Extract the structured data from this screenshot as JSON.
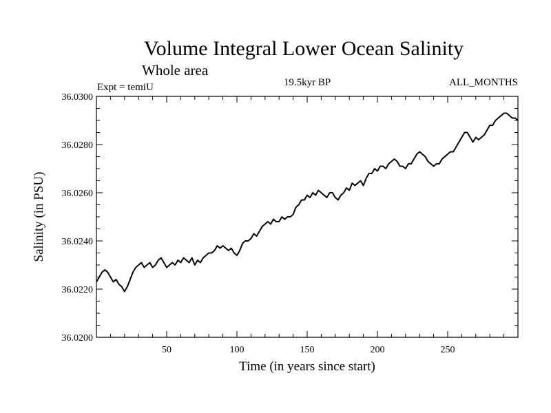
{
  "chart_data": {
    "type": "line",
    "title": "Volume Integral Lower Ocean Salinity",
    "subtitle": "Whole area",
    "left_note": "Expt = temiU",
    "center_note": "19.5kyr BP",
    "right_note": "ALL_MONTHS",
    "xlabel": "Time (in years since start)",
    "ylabel": "Salinity (in PSU)",
    "xlim": [
      0,
      300
    ],
    "ylim": [
      36.02,
      36.03
    ],
    "x_ticks": [
      50,
      100,
      150,
      200,
      250
    ],
    "x_tick_labels": [
      "50",
      "100",
      "150",
      "200",
      "250"
    ],
    "y_ticks": [
      36.02,
      36.022,
      36.024,
      36.026,
      36.028,
      36.03
    ],
    "y_tick_labels": [
      "36.0200",
      "36.0220",
      "36.0240",
      "36.0260",
      "36.0280",
      "36.0300"
    ],
    "grid": false,
    "series": [
      {
        "name": "Salinity",
        "color": "#000000",
        "x": [
          0,
          2,
          4,
          6,
          8,
          10,
          12,
          14,
          16,
          18,
          20,
          22,
          24,
          26,
          28,
          30,
          32,
          34,
          36,
          38,
          40,
          42,
          44,
          46,
          48,
          50,
          52,
          54,
          56,
          58,
          60,
          62,
          64,
          66,
          68,
          70,
          72,
          74,
          76,
          78,
          80,
          82,
          84,
          86,
          88,
          90,
          92,
          94,
          96,
          98,
          100,
          102,
          104,
          106,
          108,
          110,
          112,
          114,
          116,
          118,
          120,
          122,
          124,
          126,
          128,
          130,
          132,
          134,
          136,
          138,
          140,
          142,
          144,
          146,
          148,
          150,
          152,
          154,
          156,
          158,
          160,
          162,
          164,
          166,
          168,
          170,
          172,
          174,
          176,
          178,
          180,
          182,
          184,
          186,
          188,
          190,
          192,
          194,
          196,
          198,
          200,
          202,
          204,
          206,
          208,
          210,
          212,
          214,
          216,
          218,
          220,
          222,
          224,
          226,
          228,
          230,
          232,
          234,
          236,
          238,
          240,
          242,
          244,
          246,
          248,
          250,
          252,
          254,
          256,
          258,
          260,
          262,
          264,
          266,
          268,
          270,
          272,
          274,
          276,
          278,
          280,
          282,
          284,
          286,
          288,
          290,
          292,
          294,
          296,
          298,
          300
        ],
        "y": [
          36.0223,
          36.0225,
          36.0227,
          36.0228,
          36.0227,
          36.0225,
          36.0223,
          36.0224,
          36.0222,
          36.0221,
          36.0219,
          36.0221,
          36.0224,
          36.0227,
          36.0229,
          36.023,
          36.0231,
          36.0229,
          36.023,
          36.0231,
          36.0229,
          36.023,
          36.0232,
          36.0233,
          36.0231,
          36.0229,
          36.023,
          36.0231,
          36.023,
          36.0232,
          36.0231,
          36.0233,
          36.0232,
          36.0231,
          36.0233,
          36.023,
          36.0232,
          36.0231,
          36.0233,
          36.0234,
          36.0235,
          36.0235,
          36.0236,
          36.0238,
          36.0237,
          36.0238,
          36.0237,
          36.0236,
          36.0237,
          36.0235,
          36.0234,
          36.0236,
          36.0239,
          36.024,
          36.024,
          36.0241,
          36.0243,
          36.0242,
          36.0244,
          36.0246,
          36.0247,
          36.0248,
          36.0247,
          36.0249,
          36.0248,
          36.0248,
          36.025,
          36.0249,
          36.025,
          36.025,
          36.0251,
          36.0254,
          36.0255,
          36.0257,
          36.0257,
          36.0259,
          36.0258,
          36.026,
          36.0259,
          36.0261,
          36.026,
          36.0259,
          36.0258,
          36.026,
          36.026,
          36.0258,
          36.0257,
          36.0259,
          36.026,
          36.0262,
          36.0261,
          36.0264,
          36.0263,
          36.0264,
          36.0265,
          36.0263,
          36.0266,
          36.0268,
          36.0268,
          36.027,
          36.0269,
          36.0271,
          36.0271,
          36.027,
          36.0272,
          36.0273,
          36.0274,
          36.0273,
          36.0271,
          36.0271,
          36.027,
          36.0272,
          36.0272,
          36.0274,
          36.0276,
          36.0277,
          36.0276,
          36.0275,
          36.0273,
          36.0272,
          36.0271,
          36.0272,
          36.0272,
          36.0274,
          36.0275,
          36.0276,
          36.0277,
          36.0277,
          36.0279,
          36.0281,
          36.0283,
          36.0285,
          36.0285,
          36.0283,
          36.0281,
          36.0283,
          36.0282,
          36.0283,
          36.0284,
          36.0286,
          36.0288,
          36.0288,
          36.029,
          36.0291,
          36.0292,
          36.0293,
          36.0293,
          36.0292,
          36.0291,
          36.0291,
          36.029
        ]
      }
    ]
  }
}
